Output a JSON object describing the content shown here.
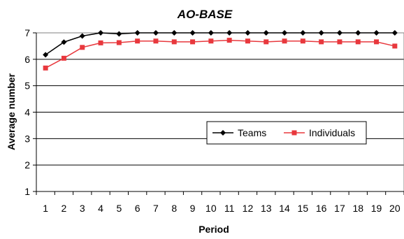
{
  "chart_data": {
    "type": "line",
    "title": "AO-BASE",
    "xlabel": "Period",
    "ylabel": "Average number",
    "x": [
      1,
      2,
      3,
      4,
      5,
      6,
      7,
      8,
      9,
      10,
      11,
      12,
      13,
      14,
      15,
      16,
      17,
      18,
      19,
      20
    ],
    "ylim": [
      1,
      7
    ],
    "yticks": [
      1,
      2,
      3,
      4,
      5,
      6,
      7
    ],
    "grid": "horizontal",
    "legend_position": "center-right",
    "series": [
      {
        "name": "Teams",
        "color": "#000000",
        "marker": "diamond",
        "values": [
          6.17,
          6.65,
          6.88,
          7.0,
          6.96,
          7.0,
          7.0,
          7.0,
          7.0,
          7.0,
          7.0,
          7.0,
          7.0,
          7.0,
          7.0,
          7.0,
          7.0,
          7.0,
          7.0,
          7.0
        ]
      },
      {
        "name": "Individuals",
        "color": "#e8383d",
        "marker": "square",
        "values": [
          5.67,
          6.04,
          6.45,
          6.62,
          6.63,
          6.69,
          6.69,
          6.66,
          6.66,
          6.69,
          6.72,
          6.69,
          6.66,
          6.69,
          6.69,
          6.66,
          6.66,
          6.66,
          6.66,
          6.5
        ]
      }
    ]
  }
}
